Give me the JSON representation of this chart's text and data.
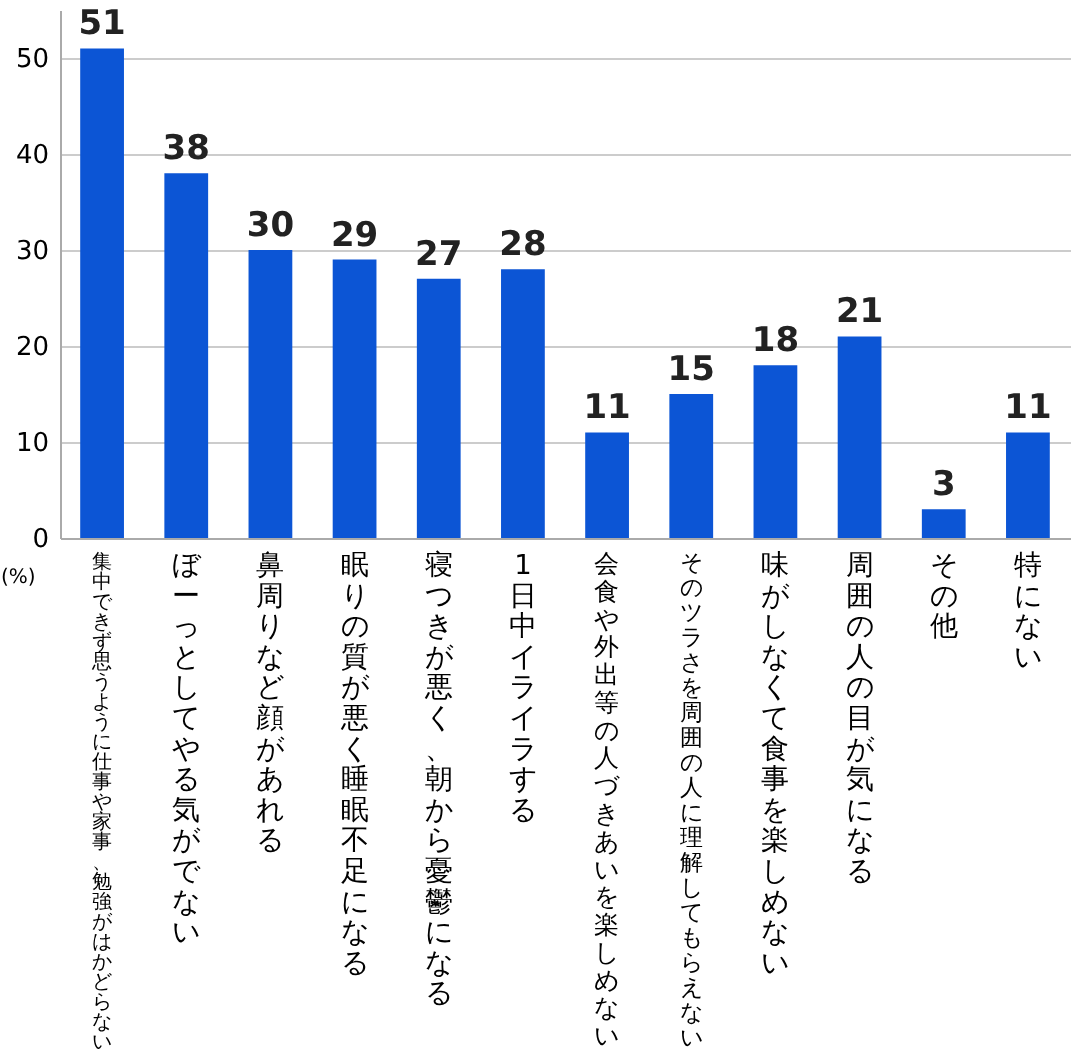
{
  "chart_data": {
    "type": "bar",
    "ylabel": "(%)",
    "categories": [
      "集中できず思うように仕事や家事、勉強がはかどらない",
      "ぼーっとしてやる気がでない",
      "鼻周りなど顔があれる",
      "眠りの質が悪く睡眠不足になる",
      "寝つきが悪く、朝から憂鬱になる",
      "1日中イライラする",
      "会食や外出等の人づきあいを楽しめない",
      "そのツラさを周囲の人に理解してもらえない",
      "味がしなくて食事を楽しめない",
      "周囲の人の目が気になる",
      "その他",
      "特にない"
    ],
    "values": [
      51,
      38,
      30,
      29,
      27,
      28,
      11,
      15,
      18,
      21,
      3,
      11
    ],
    "color": "#0c55d5",
    "data_labels": true,
    "ylim": [
      0,
      55
    ],
    "yticks": [
      0,
      10,
      20,
      30,
      40,
      50
    ],
    "grid": "y"
  }
}
